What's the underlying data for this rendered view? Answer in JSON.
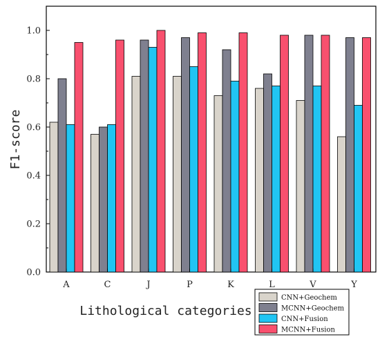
{
  "chart_data": {
    "type": "bar",
    "title": "",
    "xlabel": "Lithological categories",
    "ylabel": "F1-score",
    "categories": [
      "A",
      "C",
      "J",
      "P",
      "K",
      "L",
      "V",
      "Y"
    ],
    "ylim": [
      0,
      1.1
    ],
    "yticks": [
      "0.0",
      "0.2",
      "0.4",
      "0.6",
      "0.8",
      "1.0"
    ],
    "grid": false,
    "legend_position": "bottom-right",
    "series": [
      {
        "name": "CNN+Geochem",
        "color": "#d9d4cb",
        "values": [
          0.62,
          0.57,
          0.81,
          0.81,
          0.73,
          0.76,
          0.71,
          0.56
        ]
      },
      {
        "name": "MCNN+Geochem",
        "color": "#7f808f",
        "values": [
          0.8,
          0.6,
          0.96,
          0.97,
          0.92,
          0.82,
          0.98,
          0.97
        ]
      },
      {
        "name": "CNN+Fusion",
        "color": "#21c5f3",
        "values": [
          0.61,
          0.61,
          0.93,
          0.85,
          0.79,
          0.77,
          0.77,
          0.69
        ]
      },
      {
        "name": "MCNN+Fusion",
        "color": "#f9506e",
        "values": [
          0.95,
          0.96,
          1.0,
          0.99,
          0.99,
          0.98,
          0.98,
          0.97
        ]
      }
    ]
  }
}
